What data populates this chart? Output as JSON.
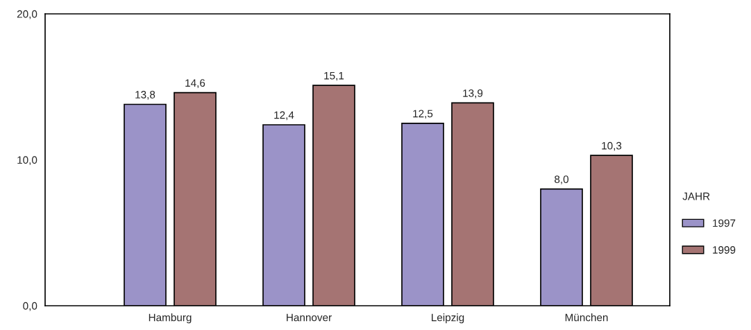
{
  "chart_data": {
    "type": "bar",
    "categories": [
      "Hamburg",
      "Hannover",
      "Leipzig",
      "München"
    ],
    "series": [
      {
        "name": "1997",
        "color": "#9b93c8",
        "values": [
          13.8,
          12.4,
          12.5,
          8.0
        ],
        "value_labels": [
          "13,8",
          "12,4",
          "12,5",
          "8,0"
        ]
      },
      {
        "name": "1999",
        "color": "#a57473",
        "values": [
          14.6,
          15.1,
          13.9,
          10.3
        ],
        "value_labels": [
          "14,6",
          "15,1",
          "13,9",
          "10,3"
        ]
      }
    ],
    "legend_title": "JAHR",
    "legend": "right",
    "grid": false,
    "ylim": [
      0,
      20
    ],
    "yticks": [
      {
        "value": 0,
        "label": "0,0"
      },
      {
        "value": 10,
        "label": "10,0"
      },
      {
        "value": 20,
        "label": "20,0"
      }
    ]
  }
}
